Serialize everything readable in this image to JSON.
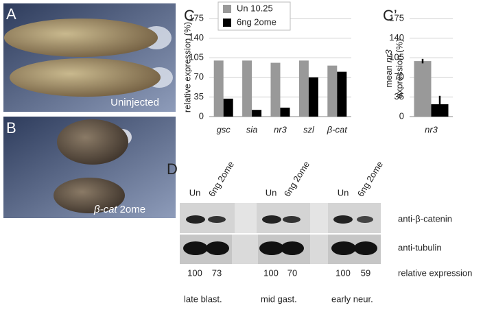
{
  "panel_a": {
    "label": "A",
    "caption": "Uninjected"
  },
  "panel_b": {
    "label": "B",
    "caption": [
      "β-cat",
      "2ome"
    ]
  },
  "chart_data": [
    {
      "type": "bar",
      "label": "C",
      "y_label": "relative expression (%)",
      "categories": [
        "gsc",
        "sia",
        "nr3",
        "szl",
        "β-cat"
      ],
      "series": [
        {
          "name": "Un 10.25",
          "color": "#999999",
          "values": [
            100,
            100,
            96,
            100,
            91
          ]
        },
        {
          "name": "6ng 2ome",
          "color": "#000000",
          "values": [
            32,
            12,
            16,
            70,
            80
          ]
        }
      ],
      "ylim": [
        0,
        175
      ],
      "yticks": [
        0,
        35,
        70,
        105,
        140,
        175
      ],
      "grid": true,
      "legend": "top"
    },
    {
      "type": "bar",
      "label": "C’",
      "y_label": [
        "mean",
        "nr3",
        "expression (%)"
      ],
      "categories": [
        "nr3"
      ],
      "series": [
        {
          "color": "#999999",
          "values": [
            99
          ],
          "errors": [
            4
          ]
        },
        {
          "color": "#000000",
          "values": [
            22
          ],
          "errors": [
            15
          ]
        }
      ],
      "ylim": [
        0,
        175
      ],
      "yticks": [
        0,
        35,
        70,
        105,
        140,
        175
      ],
      "grid": true
    }
  ],
  "panel_d": {
    "label": "D",
    "lanes": [
      "Un",
      "6ng 2ome",
      "Un",
      "6ng 2ome",
      "Un",
      "6ng 2ome"
    ],
    "rows": [
      "anti-β-catenin",
      "anti-tubulin",
      "relative expression"
    ],
    "relative_expression": [
      100,
      73,
      100,
      70,
      100,
      59
    ],
    "stages": [
      "late blast.",
      "mid gast.",
      "early neur."
    ]
  }
}
